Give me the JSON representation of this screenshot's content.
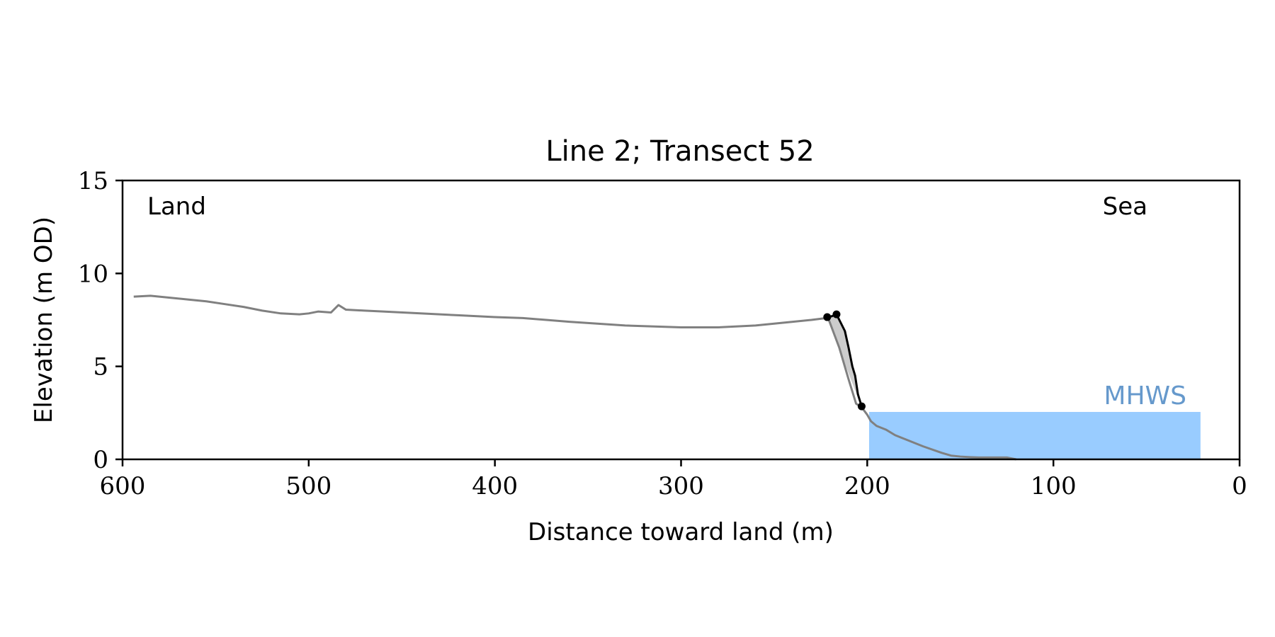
{
  "chart_data": {
    "type": "line",
    "title": "Line 2; Transect 52",
    "xlabel": "Distance toward land (m)",
    "ylabel": "Elevation (m OD)",
    "xlim": [
      600,
      0
    ],
    "ylim": [
      0,
      15
    ],
    "x_ticks": [
      600,
      500,
      400,
      300,
      200,
      100,
      0
    ],
    "y_ticks": [
      0,
      5,
      10,
      15
    ],
    "grid": false,
    "annotations": {
      "land_label": "Land",
      "sea_label": "Sea",
      "mhws_label": "MHWS"
    },
    "mhws": {
      "level": 2.55,
      "x_from": 199,
      "x_to": 21
    },
    "series": [
      {
        "role": "profile",
        "color": "#808080",
        "x": [
          594,
          585,
          575,
          565,
          555,
          545,
          535,
          525,
          515,
          505,
          500,
          495,
          488,
          484,
          480,
          470,
          460,
          440,
          420,
          400,
          385,
          360,
          330,
          300,
          280,
          260,
          240,
          230,
          222,
          221,
          215,
          210,
          206,
          203,
          200,
          198,
          195,
          190,
          185,
          180,
          170,
          160,
          155,
          150,
          145,
          140,
          135,
          125,
          120
        ],
        "y": [
          8.75,
          8.8,
          8.7,
          8.6,
          8.5,
          8.35,
          8.2,
          8.0,
          7.85,
          7.8,
          7.85,
          7.95,
          7.9,
          8.3,
          8.05,
          8.0,
          7.95,
          7.85,
          7.75,
          7.65,
          7.6,
          7.4,
          7.2,
          7.1,
          7.1,
          7.2,
          7.4,
          7.5,
          7.6,
          7.6,
          6.0,
          4.3,
          3.0,
          2.8,
          2.4,
          2.05,
          1.8,
          1.6,
          1.3,
          1.1,
          0.7,
          0.35,
          0.2,
          0.15,
          0.12,
          0.1,
          0.1,
          0.1,
          0.0
        ]
      },
      {
        "role": "cliff-face",
        "color": "#000000",
        "x": [
          221.5,
          219,
          216.5,
          215,
          212,
          210,
          208,
          206.5,
          205,
          203
        ],
        "y": [
          7.65,
          7.7,
          7.8,
          7.5,
          6.9,
          6.0,
          5.0,
          4.5,
          3.5,
          2.85
        ]
      }
    ],
    "markers": [
      {
        "x": 221.5,
        "y": 7.65
      },
      {
        "x": 216.5,
        "y": 7.8
      },
      {
        "x": 203,
        "y": 2.85
      }
    ],
    "colors": {
      "profile": "#808080",
      "cliff": "#000000",
      "shade": "#cccccc",
      "mhws_fill": "#99ccff",
      "mhws_text": "#6699cc"
    }
  }
}
